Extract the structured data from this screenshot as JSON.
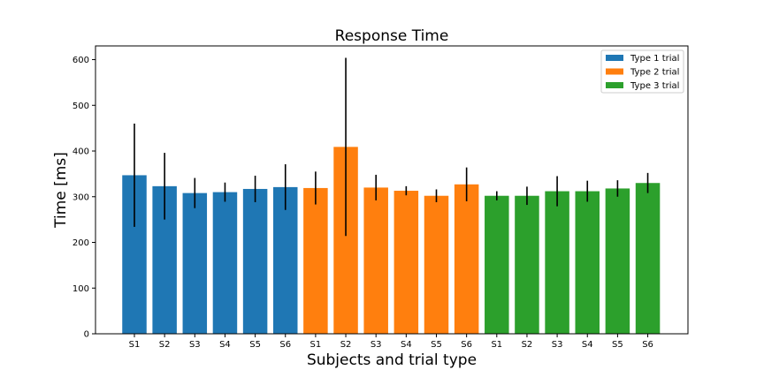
{
  "chart_data": {
    "type": "bar",
    "title": "Response Time",
    "xlabel": "Subjects and trial type",
    "ylabel": "Time [ms]",
    "ylim": [
      0,
      630
    ],
    "yticks": [
      0,
      100,
      200,
      300,
      400,
      500,
      600
    ],
    "grid": false,
    "legend_position": "top-right",
    "categories": [
      "S1",
      "S2",
      "S3",
      "S4",
      "S5",
      "S6"
    ],
    "series": [
      {
        "name": "Type 1 trial",
        "color": "#1f77b4",
        "values": [
          347,
          323,
          308,
          310,
          317,
          321
        ],
        "errors": [
          113,
          73,
          33,
          21,
          29,
          50
        ]
      },
      {
        "name": "Type 2 trial",
        "color": "#ff7f0e",
        "values": [
          319,
          409,
          320,
          313,
          302,
          327
        ],
        "errors": [
          36,
          195,
          28,
          10,
          14,
          37
        ]
      },
      {
        "name": "Type 3 trial",
        "color": "#2ca02c",
        "values": [
          302,
          302,
          312,
          312,
          318,
          330
        ],
        "errors": [
          10,
          20,
          33,
          23,
          18,
          22
        ]
      }
    ]
  }
}
